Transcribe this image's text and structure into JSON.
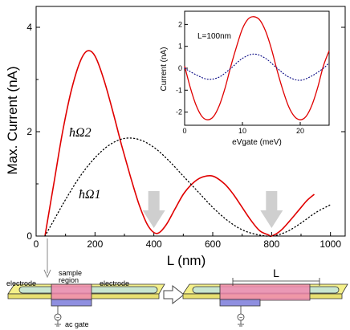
{
  "chart_data": [
    {
      "type": "line",
      "xlabel": "L (nm)",
      "ylabel": "Max. Current (nA)",
      "xlim": [
        0,
        1050
      ],
      "ylim": [
        0,
        4.4
      ],
      "x_ticks": [
        "0",
        "200",
        "400",
        "600",
        "800",
        "1000"
      ],
      "y_ticks": [
        "0",
        "2",
        "4"
      ],
      "series": [
        {
          "name": "ħΩ2",
          "style": "solid",
          "color": "#e00000",
          "x": [
            30,
            60,
            90,
            120,
            150,
            175,
            200,
            230,
            260,
            290,
            320,
            350,
            380,
            410,
            440,
            470,
            500,
            530,
            560,
            600,
            640,
            670,
            700,
            730,
            760,
            790,
            800,
            830,
            860,
            890,
            920,
            945
          ],
          "y": [
            0.0,
            1.0,
            2.0,
            2.8,
            3.35,
            3.55,
            3.45,
            3.0,
            2.4,
            1.75,
            1.15,
            0.6,
            0.2,
            0.05,
            0.2,
            0.5,
            0.8,
            1.0,
            1.12,
            1.15,
            1.0,
            0.8,
            0.55,
            0.3,
            0.1,
            0.02,
            0.0,
            0.1,
            0.28,
            0.48,
            0.68,
            0.8
          ]
        },
        {
          "name": "ħΩ1",
          "style": "dotted",
          "color": "#000000",
          "x": [
            30,
            60,
            100,
            150,
            200,
            250,
            300,
            350,
            400,
            450,
            500,
            550,
            600,
            650,
            700,
            750,
            800,
            850,
            900,
            950,
            1000
          ],
          "y": [
            0.0,
            0.3,
            0.7,
            1.15,
            1.5,
            1.75,
            1.87,
            1.85,
            1.7,
            1.45,
            1.15,
            0.85,
            0.55,
            0.3,
            0.12,
            0.03,
            0.0,
            0.08,
            0.25,
            0.45,
            0.6
          ]
        }
      ],
      "annotations": [
        {
          "text": "ħΩ2",
          "kind": "series-label"
        },
        {
          "text": "ħΩ1",
          "kind": "series-label"
        },
        {
          "kind": "arrow",
          "at_x": 400
        },
        {
          "kind": "arrow",
          "at_x": 800
        }
      ]
    },
    {
      "type": "line",
      "xlabel": "eVgate (meV)",
      "ylabel": "Current (nA)",
      "xlim": [
        0,
        25
      ],
      "ylim": [
        -2.6,
        2.6
      ],
      "x_ticks": [
        "0",
        "10",
        "20"
      ],
      "y_ticks": [
        "-2",
        "-1",
        "0",
        "1",
        "2"
      ],
      "annotation": "L=100nm",
      "series": [
        {
          "name": "ħΩ2",
          "style": "solid",
          "color": "#e00000",
          "x": [
            0,
            1,
            2,
            3,
            4,
            5,
            6,
            7,
            8,
            9,
            10,
            11,
            12,
            13,
            14,
            15,
            16,
            17,
            18,
            19,
            20,
            21,
            22,
            23,
            24,
            25
          ],
          "y": [
            0.1,
            -0.9,
            -1.7,
            -2.2,
            -2.35,
            -2.2,
            -1.7,
            -0.9,
            0.1,
            1.0,
            1.8,
            2.25,
            2.35,
            2.2,
            1.7,
            0.9,
            -0.1,
            -1.0,
            -1.75,
            -2.2,
            -2.35,
            -2.2,
            -1.7,
            -0.9,
            0.1,
            0.8
          ]
        },
        {
          "name": "ħΩ1",
          "style": "dotted",
          "color": "#000080",
          "x": [
            0,
            2,
            4,
            6,
            8,
            10,
            12,
            14,
            16,
            18,
            20,
            22,
            24,
            25
          ],
          "y": [
            0.0,
            -0.3,
            -0.5,
            -0.4,
            0.0,
            0.45,
            0.65,
            0.45,
            0.0,
            -0.4,
            -0.55,
            -0.35,
            0.0,
            0.25
          ]
        }
      ]
    }
  ],
  "diagram": {
    "left_labels": {
      "electrode_left": "electrode",
      "sample_region": "sample\nregion",
      "electrode_right": "electrode",
      "ac_gate": "ac gate"
    },
    "right_label": "L",
    "colors": {
      "substrate": "#f4f08a",
      "tube": "#c8e6d0",
      "sample": "#f08ab0",
      "gate": "#8f8fe0"
    }
  }
}
